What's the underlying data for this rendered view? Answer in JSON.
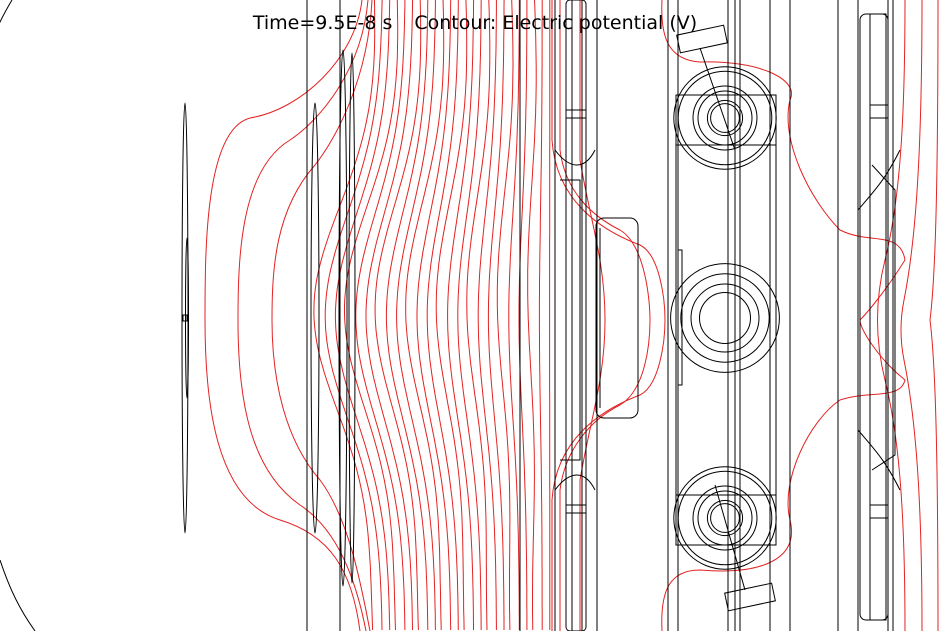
{
  "plot": {
    "time_label": "Time=9.5E-8 s",
    "contour_label": "Contour: Electric potential (V)"
  },
  "colors": {
    "contour": "#e32222",
    "geometry": "#000000",
    "background": "#ffffff"
  }
}
